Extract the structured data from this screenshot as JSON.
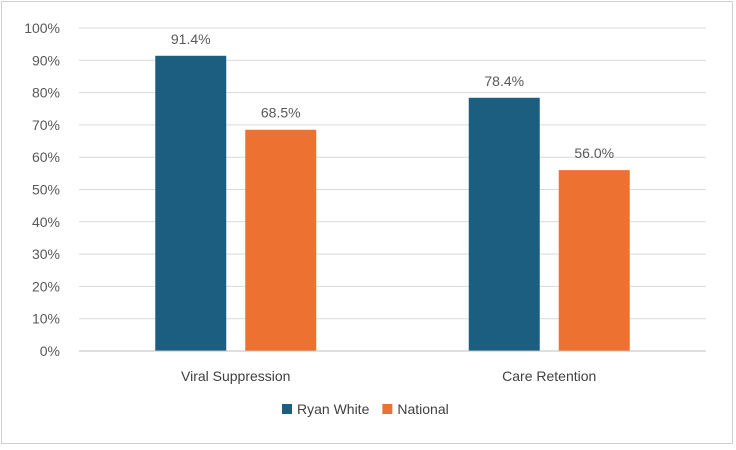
{
  "chart_data": {
    "type": "bar",
    "title": "",
    "xlabel": "",
    "ylabel": "",
    "categories": [
      "Viral Suppression",
      "Care Retention"
    ],
    "series": [
      {
        "name": "Ryan White",
        "values": [
          91.4,
          78.4
        ],
        "labels": [
          "91.4%",
          "78.4%"
        ],
        "color": "#1b5e80"
      },
      {
        "name": "National",
        "values": [
          68.5,
          56.0
        ],
        "labels": [
          "68.5%",
          "56.0%"
        ],
        "color": "#ed7231"
      }
    ],
    "ylim": [
      0,
      100
    ],
    "yticks": [
      0,
      10,
      20,
      30,
      40,
      50,
      60,
      70,
      80,
      90,
      100
    ],
    "ytick_labels": [
      "0%",
      "10%",
      "20%",
      "30%",
      "40%",
      "50%",
      "60%",
      "70%",
      "80%",
      "90%",
      "100%"
    ],
    "grid": true,
    "legend": "bottom",
    "gridline_color": "#d9d9d9"
  }
}
